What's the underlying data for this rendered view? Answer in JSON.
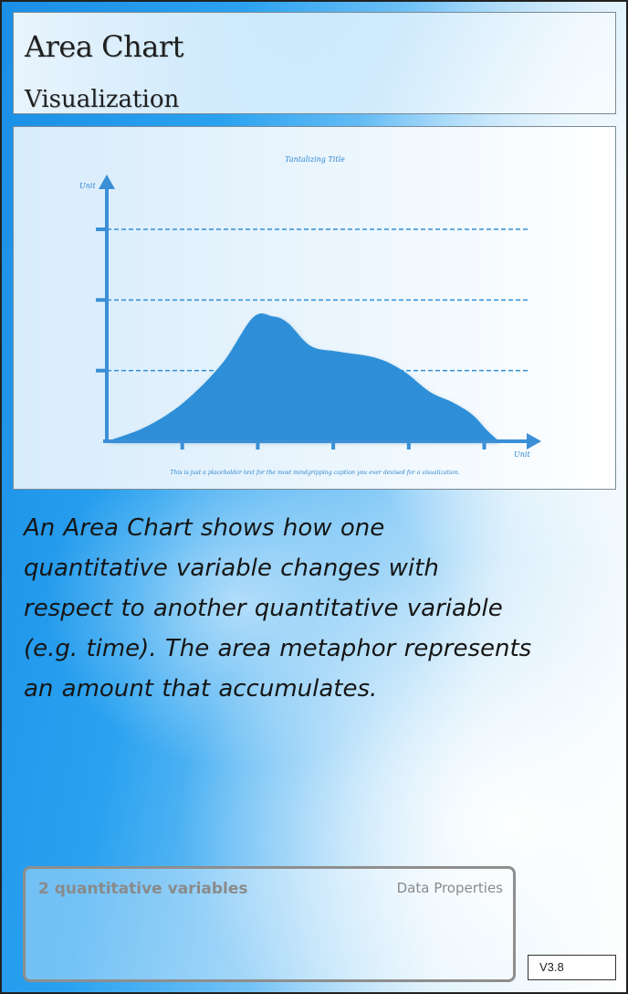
{
  "header": {
    "title": "Area Chart",
    "subtitle": "Visualization"
  },
  "chart_data": {
    "type": "area",
    "title": "Tantalizing Title",
    "xlabel": "Unit",
    "ylabel": "Unit",
    "caption": "This is just a placeholder text for the most mindgripping caption you ever devised for a visualization.",
    "grid": "dashed horizontal lines",
    "ylim": [
      0,
      3
    ],
    "xlim": [
      0,
      5.2
    ],
    "x_ticks": [
      1,
      2,
      3,
      4,
      5
    ],
    "y_ticks": [
      1,
      2,
      3
    ],
    "x": [
      0,
      0.5,
      1.0,
      1.5,
      1.9,
      2.15,
      2.35,
      2.65,
      3.0,
      3.5,
      3.85,
      4.2,
      4.5,
      4.75,
      4.95,
      5.1
    ],
    "y": [
      0,
      0.2,
      0.55,
      1.1,
      1.75,
      1.77,
      1.68,
      1.35,
      1.27,
      1.18,
      1.0,
      0.7,
      0.55,
      0.38,
      0.15,
      0.0
    ],
    "colors": {
      "fill": "#2f8fd8",
      "axis": "#3a8fd6",
      "grid": "#2f8fd8",
      "text": "#2f86cf"
    }
  },
  "description": "An Area Chart shows how one quantitative variable changes with respect to another quantitative variable (e.g. time). The area metaphor represents an amount that accumulates.",
  "properties": {
    "variables": "2 quantitative variables",
    "label": "Data Properties"
  },
  "version": "V3.8"
}
